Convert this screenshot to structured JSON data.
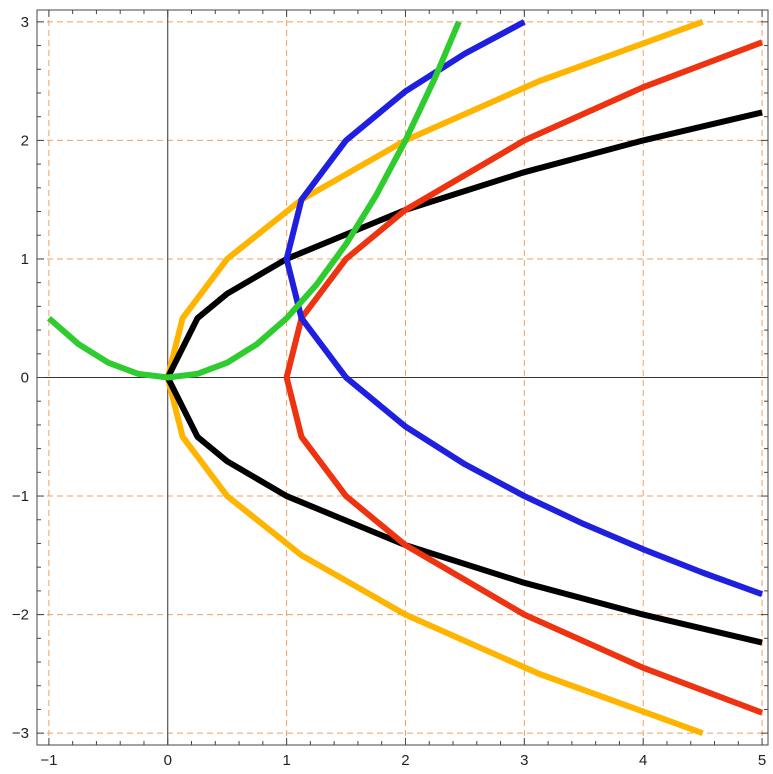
{
  "chart_data": {
    "type": "line",
    "title": "",
    "xlabel": "",
    "ylabel": "",
    "xlim": [
      -1.1,
      5.05
    ],
    "ylim": [
      -3.1,
      3.1
    ],
    "x_ticks": [
      -1,
      0,
      1,
      2,
      3,
      4,
      5
    ],
    "y_ticks": [
      -3,
      -2,
      -1,
      0,
      1,
      2,
      3
    ],
    "x_tick_labels": [
      "−1",
      "0",
      "1",
      "2",
      "3",
      "4",
      "5"
    ],
    "y_tick_labels": [
      "−3",
      "−2",
      "−1",
      "0",
      "1",
      "2",
      "3"
    ],
    "grid": true,
    "grid_style": "dashed",
    "grid_color": "#f0a060",
    "legend": "none",
    "series": [
      {
        "color": "#ffb400",
        "x": [
          4.5,
          3.125,
          2.0,
          1.125,
          0.5,
          0.125,
          0.0,
          0.125,
          0.5,
          1.125,
          2.0,
          3.125,
          4.5
        ],
        "y": [
          -3.0,
          -2.5,
          -2.0,
          -1.5,
          -1.0,
          -0.5,
          0.0,
          0.5,
          1.0,
          1.5,
          2.0,
          2.5,
          3.0
        ]
      },
      {
        "color": "#000000",
        "x": [
          5.0,
          4.0,
          3.0,
          2.0,
          1.0,
          0.5,
          0.25,
          0.0,
          0.25,
          0.5,
          1.0,
          2.0,
          3.0,
          4.0,
          5.0
        ],
        "y": [
          -2.236,
          -2.0,
          -1.732,
          -1.414,
          -1.0,
          -0.707,
          -0.5,
          0.0,
          0.5,
          0.707,
          1.0,
          1.414,
          1.732,
          2.0,
          2.236
        ]
      },
      {
        "color": "#ee3311",
        "x": [
          5.0,
          4.0,
          3.0,
          2.0,
          1.5,
          1.125,
          1.0,
          1.125,
          1.5,
          2.0,
          3.0,
          4.0,
          5.0
        ],
        "y": [
          -2.828,
          -2.449,
          -2.0,
          -1.414,
          -1.0,
          -0.5,
          0.0,
          0.5,
          1.0,
          1.414,
          2.0,
          2.449,
          2.828
        ]
      },
      {
        "color": "#1f1fe0",
        "x": [
          5.0,
          4.5,
          4.0,
          3.5,
          3.0,
          2.5,
          2.0,
          1.5,
          1.125,
          1.0,
          1.125,
          1.5,
          2.0,
          2.5,
          3.0
        ],
        "y": [
          -1.828,
          -1.646,
          -1.449,
          -1.236,
          -1.0,
          -0.732,
          -0.414,
          0.0,
          0.5,
          1.0,
          1.5,
          2.0,
          2.414,
          2.732,
          3.0
        ]
      },
      {
        "color": "#2ecc2e",
        "x": [
          -1.0,
          -0.75,
          -0.5,
          -0.25,
          0.0,
          0.25,
          0.5,
          0.75,
          1.0,
          1.25,
          1.5,
          1.75,
          2.0,
          2.25,
          2.449
        ],
        "y": [
          0.5,
          0.281,
          0.125,
          0.031,
          0.0,
          0.031,
          0.125,
          0.281,
          0.5,
          0.781,
          1.125,
          1.531,
          2.0,
          2.531,
          3.0
        ]
      }
    ]
  }
}
